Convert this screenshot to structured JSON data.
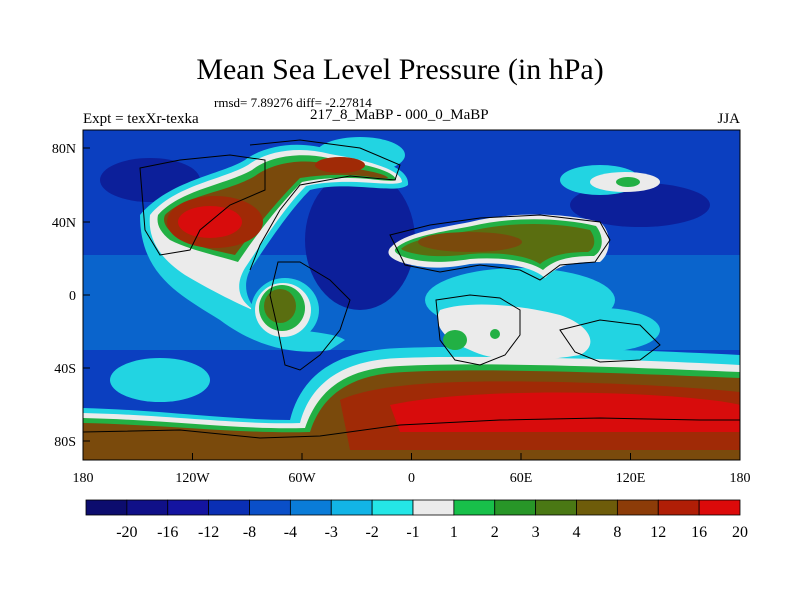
{
  "header": {
    "title": "Mean Sea Level Pressure (in hPa)",
    "stats": "rmsd= 7.89276 diff= -2.27814",
    "left_label": "Expt = texXr-texka",
    "center_label": "217_8_MaBP - 000_0_MaBP",
    "right_label": "JJA"
  },
  "axes": {
    "y_ticks": [
      "80N",
      "40N",
      "0",
      "40S",
      "80S"
    ],
    "x_ticks": [
      "180",
      "120W",
      "60W",
      "0",
      "60E",
      "120E",
      "180"
    ]
  },
  "legend": {
    "labels": [
      "-20",
      "-16",
      "-12",
      "-8",
      "-4",
      "-3",
      "-2",
      "-1",
      "1",
      "2",
      "3",
      "4",
      "8",
      "12",
      "16",
      "20"
    ],
    "colors": [
      "#0c0c6e",
      "#101088",
      "#1414a0",
      "#0a2fb4",
      "#0a4fc8",
      "#0a7cd8",
      "#12b4e6",
      "#24e6e6",
      "#ebebeb",
      "#18c04a",
      "#289628",
      "#4a7814",
      "#6e5c0a",
      "#8c3c08",
      "#b01e06",
      "#dc0a0a"
    ]
  },
  "map": {
    "colors": {
      "ocean": "#0b3fc0",
      "ocean_light": "#0a64cc",
      "ocean_deep": "#0c1f9a",
      "cyan": "#22d4e2",
      "white": "#ebebeb",
      "green": "#22b044",
      "olive": "#5a6e10",
      "brown": "#7a4a0c",
      "red_brown": "#a02a06",
      "red": "#d80c0c"
    }
  }
}
